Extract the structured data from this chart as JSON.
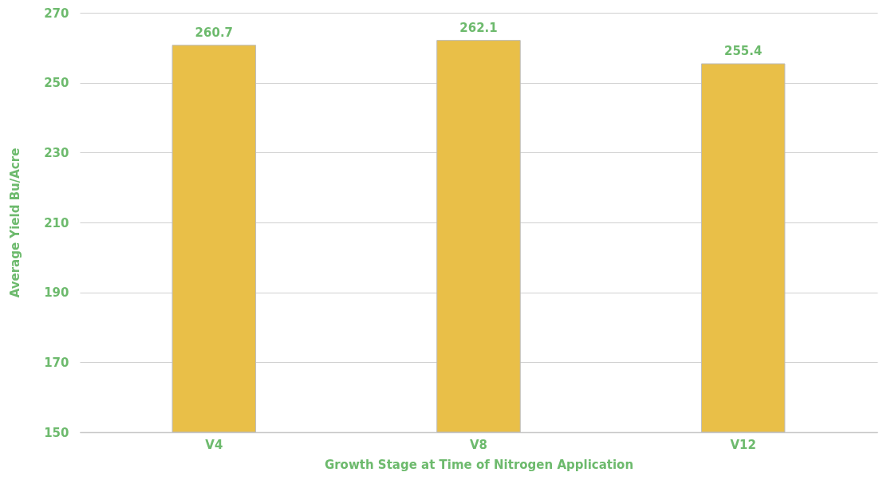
{
  "chart_data": {
    "type": "bar",
    "xlabel": "Growth Stage at Time of Nitrogen Application",
    "ylabel": "Average Yield  Bu/Acre",
    "categories": [
      "V4",
      "V8",
      "V12"
    ],
    "values": [
      260.7,
      262.1,
      255.4
    ],
    "color": "#e9bf48",
    "ylim": [
      150,
      270
    ],
    "yticks": [
      150,
      170,
      190,
      210,
      230,
      250,
      270
    ],
    "grid": "y",
    "data_labels": true
  }
}
